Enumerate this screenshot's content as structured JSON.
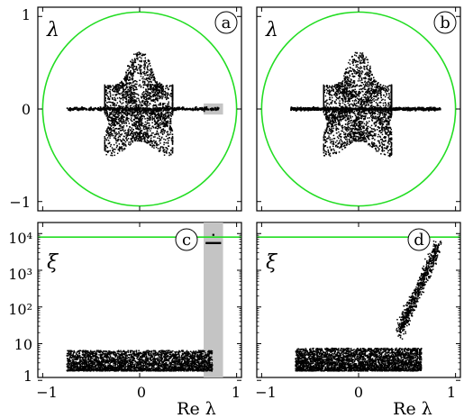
{
  "chart_data": [
    {
      "id": "a",
      "type": "scatter",
      "panel_label": "a",
      "ylabel_glyph": "λ",
      "xlim": [
        -1.05,
        1.05
      ],
      "ylim": [
        -1.1,
        1.1
      ],
      "xticks": [
        -1,
        0,
        1
      ],
      "yticks": [
        -1,
        0,
        1
      ],
      "ytick_labels": [
        "−1",
        "0",
        "1"
      ],
      "show_xtick_labels": false,
      "unit_circle": {
        "radius": 1,
        "color": "#22dd22"
      },
      "highlight_box": {
        "x": [
          0.66,
          0.86
        ],
        "y": [
          -0.06,
          0.06
        ],
        "color": "#c4c4c4"
      },
      "cloud": {
        "shape": "star",
        "arms": 5,
        "peak_radius": 0.62,
        "valley_radius": 0.35,
        "x_range": [
          -0.36,
          0.34
        ],
        "n_points": 2600
      },
      "real_axis_eigenvalues": {
        "x_range": [
          -0.75,
          0.82
        ],
        "n_points": 420
      }
    },
    {
      "id": "b",
      "type": "scatter",
      "panel_label": "b",
      "ylabel_glyph": "λ",
      "xlim": [
        -1.05,
        1.05
      ],
      "ylim": [
        -1.1,
        1.1
      ],
      "xticks": [
        -1,
        0,
        1
      ],
      "yticks": [
        -1,
        0,
        1
      ],
      "show_xtick_labels": false,
      "show_ytick_labels": false,
      "unit_circle": {
        "radius": 1,
        "color": "#22dd22"
      },
      "cloud": {
        "shape": "star",
        "arms": 5,
        "peak_radius": 0.62,
        "valley_radius": 0.35,
        "x_range": [
          -0.36,
          0.34
        ],
        "n_points": 2600
      },
      "real_axis_eigenvalues": {
        "x_range": [
          -0.7,
          0.85
        ],
        "n_points": 700,
        "dense_segment": [
          -0.68,
          0.85
        ]
      }
    },
    {
      "id": "c",
      "type": "scatter",
      "panel_label": "c",
      "ylabel_glyph": "ξ",
      "xlabel": "Re λ",
      "yscale": "log",
      "xlim": [
        -1.05,
        1.05
      ],
      "ylim": [
        1.2,
        20000
      ],
      "xticks": [
        -1,
        0,
        1
      ],
      "xtick_labels": [
        "−1",
        "0",
        "1"
      ],
      "yticks": [
        1,
        10,
        100,
        1000,
        10000
      ],
      "ytick_labels": [
        "1",
        "10",
        "10²",
        "10³",
        "10⁴"
      ],
      "reference_line": {
        "y": 8000,
        "color": "#22dd22"
      },
      "highlight_band": {
        "x": [
          0.66,
          0.86
        ],
        "color": "#c4c4c4"
      },
      "highlight_segment": {
        "x": [
          0.68,
          0.84
        ],
        "y": 5500
      },
      "cloud": {
        "x_range": [
          -0.75,
          0.75
        ],
        "y_range": [
          1.8,
          6.5
        ],
        "n_points": 3200
      }
    },
    {
      "id": "d",
      "type": "scatter",
      "panel_label": "d",
      "ylabel_glyph": "ξ",
      "xlabel": "Re λ",
      "yscale": "log",
      "xlim": [
        -1.05,
        1.05
      ],
      "ylim": [
        1.2,
        20000
      ],
      "xticks": [
        -1,
        0,
        1
      ],
      "xtick_labels": [
        "−1",
        "0",
        "1"
      ],
      "yticks": [
        1,
        10,
        100,
        1000,
        10000
      ],
      "show_ytick_labels": false,
      "reference_line": {
        "y": 8000,
        "color": "#22dd22"
      },
      "cloud": {
        "x_range": [
          -0.65,
          0.65
        ],
        "y_range": [
          1.8,
          7.5
        ],
        "n_points": 3400
      },
      "localized_branch": {
        "x_range": [
          0.42,
          0.82
        ],
        "y_range": [
          20,
          4500
        ],
        "n_points": 700
      }
    }
  ]
}
